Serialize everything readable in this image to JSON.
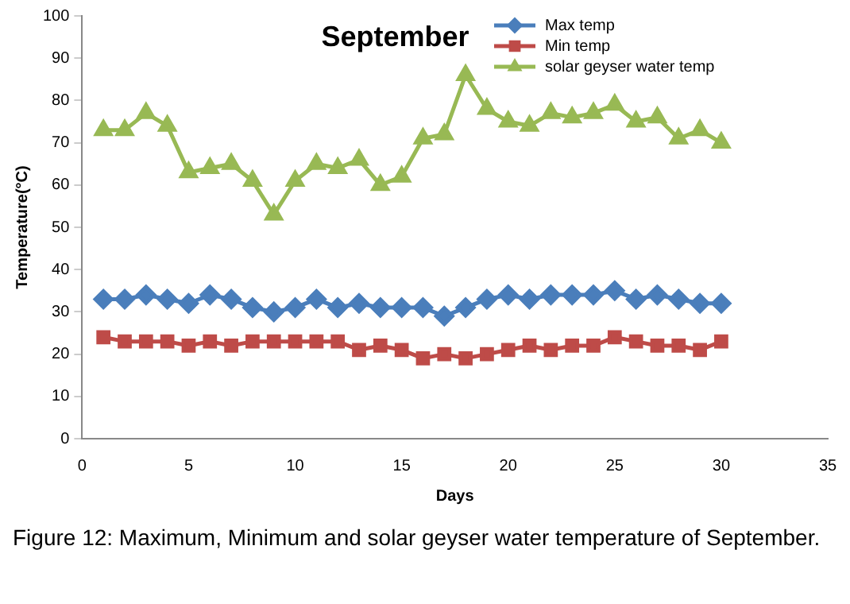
{
  "chart_data": {
    "type": "line",
    "title": "September",
    "xlabel": "Days",
    "ylabel": "Temperature(°C)",
    "x": [
      1,
      2,
      3,
      4,
      5,
      6,
      7,
      8,
      9,
      10,
      11,
      12,
      13,
      14,
      15,
      16,
      17,
      18,
      19,
      20,
      21,
      22,
      23,
      24,
      25,
      26,
      27,
      28,
      29,
      30
    ],
    "series": [
      {
        "name": "Max temp",
        "color": "#4a7ebb",
        "marker": "diamond",
        "values": [
          33,
          33,
          34,
          33,
          32,
          34,
          33,
          31,
          30,
          31,
          33,
          31,
          32,
          31,
          31,
          31,
          29,
          31,
          33,
          34,
          33,
          34,
          34,
          34,
          35,
          33,
          34,
          33,
          32,
          32
        ]
      },
      {
        "name": "Min temp",
        "color": "#be4b48",
        "marker": "square",
        "values": [
          24,
          23,
          23,
          23,
          22,
          23,
          22,
          23,
          23,
          23,
          23,
          23,
          21,
          22,
          21,
          19,
          20,
          19,
          20,
          21,
          22,
          21,
          22,
          22,
          24,
          23,
          22,
          22,
          21,
          23
        ]
      },
      {
        "name": "solar geyser water temp",
        "color": "#98b954",
        "marker": "triangle",
        "values": [
          73,
          73,
          77,
          74,
          63,
          64,
          65,
          61,
          53,
          61,
          65,
          64,
          66,
          60,
          62,
          71,
          72,
          86,
          78,
          75,
          74,
          77,
          76,
          77,
          79,
          75,
          76,
          71,
          73,
          70
        ]
      }
    ],
    "xlim": [
      0,
      35
    ],
    "xticks": [
      0,
      5,
      10,
      15,
      20,
      25,
      30,
      35
    ],
    "ylim": [
      0,
      100
    ],
    "yticks": [
      0,
      10,
      20,
      30,
      40,
      50,
      60,
      70,
      80,
      90,
      100
    ],
    "grid": false,
    "legend": "top right",
    "line_style": "solid",
    "annotations": [
      "Figure 12: Maximum, Minimum and solar geyser water temperature of September."
    ]
  }
}
